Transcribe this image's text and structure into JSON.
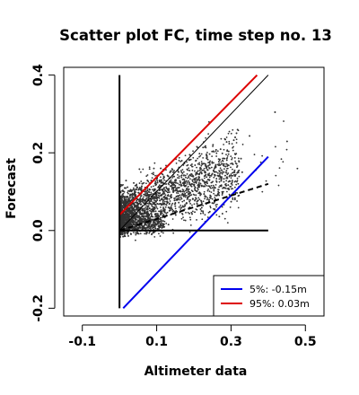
{
  "chart_data": {
    "type": "scatter",
    "title": "Scatter plot FC, time step no. 13",
    "xlabel": "Altimeter data",
    "ylabel": "Forecast",
    "xlim": [
      -0.15,
      0.55
    ],
    "ylim": [
      -0.22,
      0.42
    ],
    "xticks": [
      -0.1,
      0.1,
      0.3,
      0.5
    ],
    "xtick_labels": [
      "-0.1",
      "0.1",
      "0.3",
      "0.5"
    ],
    "yticks": [
      -0.2,
      0.0,
      0.2,
      0.4
    ],
    "ytick_labels": [
      "-0.2",
      "0.0",
      "0.2",
      "0.4"
    ],
    "grid": false,
    "point_color": "#333333",
    "lines": [
      {
        "name": "5%: -0.15m",
        "color": "#0000ee",
        "style": "solid",
        "x": [
          0.01,
          0.4
        ],
        "y": [
          -0.2,
          0.19
        ]
      },
      {
        "name": "95%:  0.03m",
        "color": "#dd0000",
        "style": "solid",
        "x": [
          0.0,
          0.37
        ],
        "y": [
          0.04,
          0.4
        ]
      },
      {
        "name": "",
        "color": "#000000",
        "style": "solid-thin",
        "x": [
          0.0,
          0.4
        ],
        "y": [
          0.0,
          0.4
        ]
      },
      {
        "name": "",
        "color": "#000000",
        "style": "dashed",
        "x": [
          0.0,
          0.4
        ],
        "y": [
          0.0,
          0.12
        ]
      },
      {
        "name": "",
        "color": "#000000",
        "style": "solid",
        "x": [
          0.0,
          0.4
        ],
        "y": [
          0.0,
          0.0
        ]
      },
      {
        "name": "",
        "color": "#000000",
        "style": "solid",
        "x": [
          0.0,
          0.0
        ],
        "y": [
          -0.2,
          0.4
        ]
      }
    ],
    "legend": {
      "position": "bottom-right",
      "entries": [
        {
          "label": "5%: -0.15m",
          "color": "#0000ee"
        },
        {
          "label": "95%:  0.03m",
          "color": "#dd0000"
        }
      ]
    }
  }
}
